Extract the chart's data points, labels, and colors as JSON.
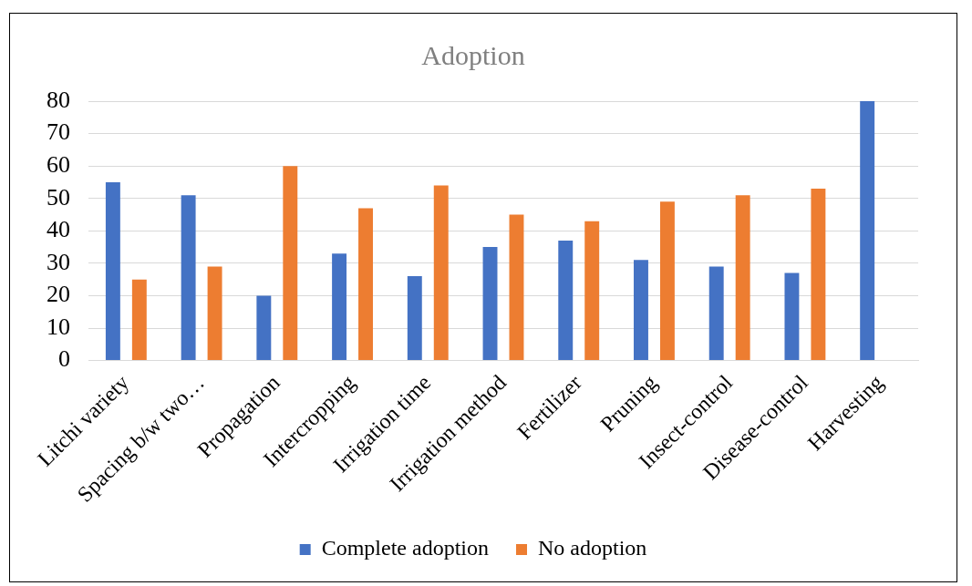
{
  "chart_data": {
    "type": "bar",
    "title": "Adoption",
    "categories": [
      "Litchi variety",
      "Spacing b/w two…",
      "Propagation",
      "Intercropping",
      "Irrigation time",
      "Irrigation method",
      "Fertilizer",
      "Pruning",
      "Insect-control",
      "Disease-control",
      "Harvesting"
    ],
    "series": [
      {
        "name": "Complete adoption",
        "color": "#4472c4",
        "values": [
          55,
          51,
          20,
          33,
          26,
          35,
          37,
          31,
          29,
          27,
          80
        ]
      },
      {
        "name": "No adoption",
        "color": "#ed7d31",
        "values": [
          25,
          29,
          60,
          47,
          54,
          45,
          43,
          49,
          51,
          53,
          0
        ]
      }
    ],
    "ylim": [
      0,
      80
    ],
    "yticks": [
      0,
      10,
      20,
      30,
      40,
      50,
      60,
      70,
      80
    ],
    "grid": "y",
    "legend": "bottom"
  }
}
